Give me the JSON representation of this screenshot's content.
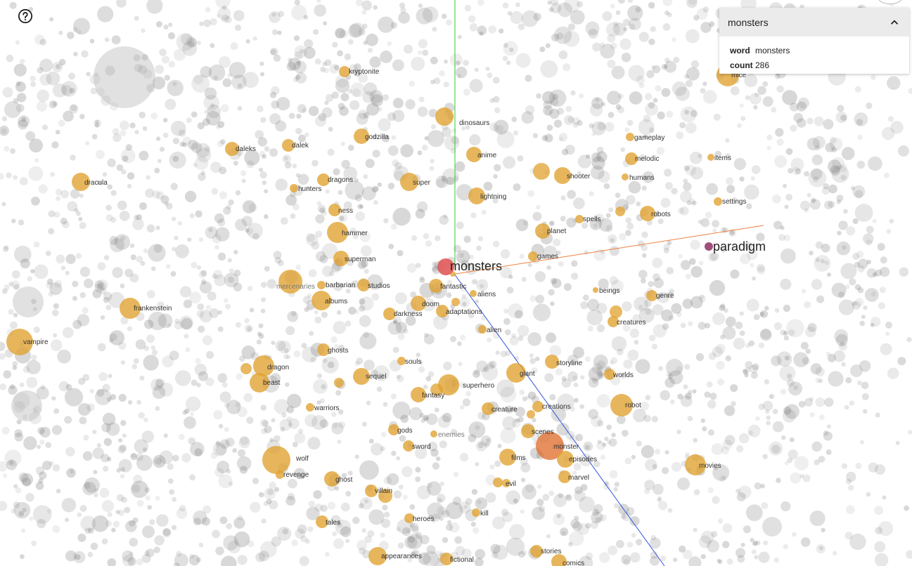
{
  "help_icon": "help-circle-icon",
  "panel": {
    "title": "monsters",
    "toggle_icon": "chevron-up-icon",
    "rows": [
      {
        "key": "word",
        "value": "monsters"
      },
      {
        "key": "count",
        "value": "286"
      }
    ]
  },
  "colors": {
    "background": "#ffffff",
    "neighbor": "#e0a12e",
    "selected": "#e05a5a",
    "target": "#a0507a",
    "axis_y": "#33cc33",
    "axis_z": "#3355dd",
    "axis_x": "#f08040",
    "monster_highlight": "#e07030"
  },
  "labels": {
    "selected": "monsters",
    "target": "paradigm",
    "neighbors": [
      "kryptonite",
      "dinosaurs",
      "godzilla",
      "daleks",
      "dalek",
      "dracula",
      "anime",
      "gameplay",
      "melodic",
      "items",
      "dragons",
      "hunters",
      "super",
      "shooter",
      "humans",
      "lightning",
      "settings",
      "ness",
      "robots",
      "spells",
      "hammer",
      "planet",
      "games",
      "superman",
      "mercenaries",
      "barbarian",
      "studios",
      "fantastic",
      "aliens",
      "beings",
      "genre",
      "frankenstein",
      "albums",
      "doom",
      "darkness",
      "adaptations",
      "creatures",
      "alien",
      "vampire",
      "ghosts",
      "souls",
      "storyline",
      "dragon",
      "giant",
      "sequel",
      "worlds",
      "beast",
      "superhero",
      "fantasy",
      "robot",
      "warriors",
      "creature",
      "creations",
      "gods",
      "enemies",
      "scenes",
      "monster",
      "sword",
      "films",
      "episodes",
      "wolf",
      "movies",
      "revenge",
      "ghost",
      "marvel",
      "evil",
      "villain",
      "kill",
      "tales",
      "heroes",
      "stories",
      "appearances",
      "fictional",
      "comics",
      "mice"
    ]
  }
}
